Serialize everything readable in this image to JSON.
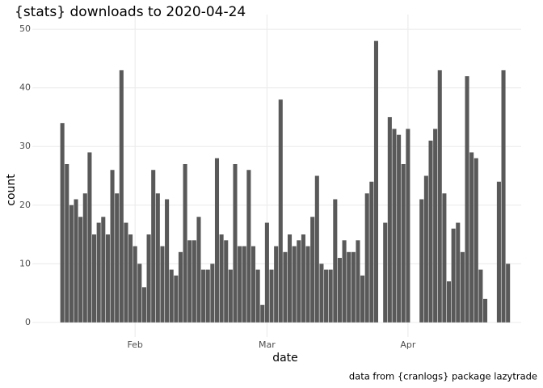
{
  "chart_data": {
    "type": "bar",
    "title": "{stats} downloads to 2020-04-24",
    "x_label": "date",
    "y_label": "count",
    "caption": "data from {cranlogs} package lazytrade",
    "categories": [
      null,
      null,
      null,
      null,
      null,
      null,
      null,
      null,
      null,
      null,
      null,
      null,
      null,
      null,
      null,
      null,
      null,
      null,
      null,
      null,
      null,
      null,
      null,
      null,
      null,
      null,
      null,
      null,
      null,
      null,
      null,
      null,
      null,
      null,
      null,
      null,
      null,
      null,
      null,
      null,
      null,
      null,
      null,
      null,
      null,
      null,
      null,
      null,
      null,
      null,
      null,
      null,
      null,
      null,
      null,
      null,
      null,
      null,
      null,
      null,
      null,
      null,
      null,
      null,
      null,
      null,
      null,
      null,
      null,
      null,
      null,
      null,
      null,
      null,
      null,
      null,
      null,
      null,
      null,
      null,
      null,
      null,
      null,
      null,
      null,
      null,
      null,
      null,
      null,
      null,
      null,
      null,
      null,
      null,
      null,
      null,
      null,
      null,
      null
    ],
    "values": [
      34,
      27,
      20,
      21,
      18,
      22,
      29,
      15,
      17,
      18,
      15,
      26,
      22,
      43,
      17,
      15,
      13,
      10,
      6,
      15,
      26,
      22,
      13,
      21,
      9,
      8,
      12,
      27,
      14,
      14,
      18,
      9,
      9,
      10,
      28,
      15,
      14,
      9,
      27,
      13,
      13,
      26,
      13,
      9,
      3,
      17,
      9,
      13,
      38,
      12,
      15,
      13,
      14,
      15,
      13,
      18,
      25,
      10,
      9,
      9,
      21,
      11,
      14,
      12,
      12,
      14,
      8,
      22,
      24,
      48,
      null,
      17,
      35,
      33,
      32,
      27,
      33,
      null,
      null,
      21,
      25,
      31,
      33,
      43,
      22,
      7,
      16,
      17,
      12,
      42,
      29,
      28,
      9,
      4,
      null,
      null,
      24,
      43,
      10
    ],
    "color": "#595959",
    "xlim": [
      -6.6,
      100.9
    ],
    "xticks": [
      {
        "value": 16,
        "label": "Feb"
      },
      {
        "value": 45,
        "label": "Mar"
      },
      {
        "value": 76,
        "label": "Apr"
      }
    ],
    "ylim": [
      -2.5,
      52.5
    ],
    "yticks": [
      0,
      10,
      20,
      30,
      40,
      50
    ],
    "grid": true
  }
}
